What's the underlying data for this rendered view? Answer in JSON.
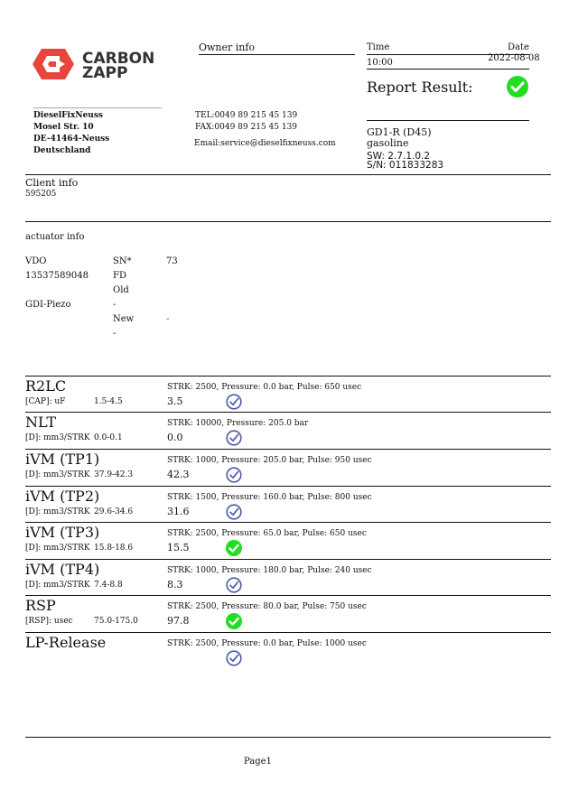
{
  "brand": {
    "logo_text": [
      "CARBON",
      "ZAPP"
    ],
    "color": "#e8453c"
  },
  "owner": {
    "heading": "Owner info",
    "tel": "TEL:0049 89 215 45 139",
    "fax": "FAX:0049 89 215 45 139",
    "email": "Email:service@dieselfixneuss.com"
  },
  "address": [
    "DieselFixNeuss",
    "Mosel Str. 10",
    "DE-41464-Neuss",
    "Deutschland"
  ],
  "header": {
    "time_label": "Time",
    "time": "10:00",
    "date_label": "Date",
    "date": "2022-08-08",
    "report_result_label": "Report Result:",
    "report_result": "pass"
  },
  "device": {
    "model": "GD1-R (D45)",
    "fuel": "gasoline",
    "sw": "SW: 2.7.1.0.2",
    "sn": "S/N: 011833283"
  },
  "client": {
    "heading": "Client info",
    "id": "595205"
  },
  "actuator": {
    "heading": "actuator info",
    "col1": [
      "VDO",
      "13537589048",
      "GDI-Piezo"
    ],
    "col2": [
      "SN*",
      "FD",
      "Old",
      "-",
      "New",
      "-"
    ],
    "col3": [
      "73",
      "-"
    ]
  },
  "tests": [
    {
      "name": "R2LC",
      "condition": "STRK: 2500, Pressure: 0.0 bar, Pulse: 650 usec",
      "unit": "[CAP]: uF",
      "range": "1.5-4.5",
      "value": "3.5",
      "status": "ok-outline"
    },
    {
      "name": "NLT",
      "condition": "STRK: 10000, Pressure: 205.0 bar",
      "unit": "[D]: mm3/STRK",
      "range": "0.0-0.1",
      "value": "0.0",
      "status": "ok-outline"
    },
    {
      "name": "iVM (TP1)",
      "condition": "STRK: 1000, Pressure: 205.0 bar, Pulse: 950 usec",
      "unit": "[D]: mm3/STRK",
      "range": "37.9-42.3",
      "value": "42.3",
      "status": "ok-outline"
    },
    {
      "name": "iVM (TP2)",
      "condition": "STRK: 1500, Pressure: 160.0 bar, Pulse: 800 usec",
      "unit": "[D]: mm3/STRK",
      "range": "29.6-34.6",
      "value": "31.6",
      "status": "ok-outline"
    },
    {
      "name": "iVM (TP3)",
      "condition": "STRK: 2500, Pressure: 65.0 bar, Pulse: 650 usec",
      "unit": "[D]: mm3/STRK",
      "range": "15.8-18.6",
      "value": "15.5",
      "status": "pass-filled"
    },
    {
      "name": "iVM (TP4)",
      "condition": "STRK: 1000, Pressure: 180.0 bar, Pulse: 240 usec",
      "unit": "[D]: mm3/STRK",
      "range": "7.4-8.8",
      "value": "8.3",
      "status": "ok-outline"
    },
    {
      "name": "RSP",
      "condition": "STRK: 2500, Pressure: 80.0 bar, Pulse: 750 usec",
      "unit": "[RSP]: usec",
      "range": "75.0-175.0",
      "value": "97.8",
      "status": "pass-filled"
    },
    {
      "name": "LP-Release",
      "condition": "STRK: 2500, Pressure: 0.0 bar, Pulse: 1000 usec",
      "unit": "",
      "range": "",
      "value": "",
      "status": "ok-outline"
    }
  ],
  "colors": {
    "pass": "#22dd22",
    "ok_outline": "#4a5aa8"
  },
  "footer": {
    "page": "Page1"
  }
}
